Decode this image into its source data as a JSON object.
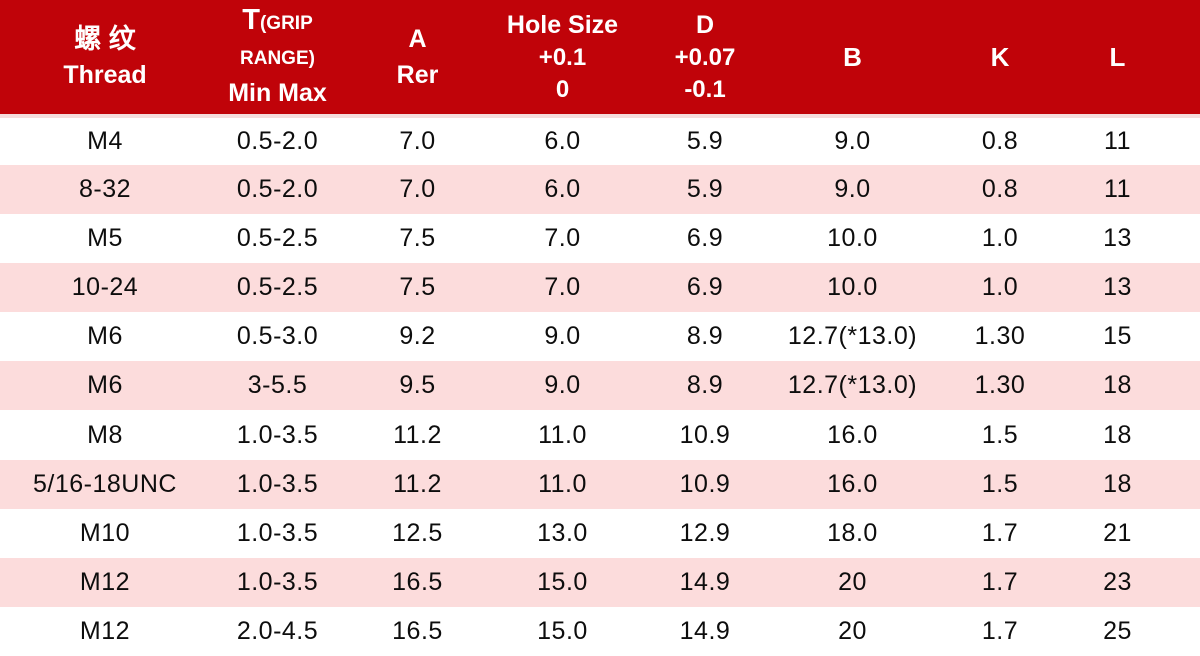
{
  "colors": {
    "header_bg": "#C00309",
    "header_text": "#FFFFFF",
    "row_alt_bg": "#FCDCDC",
    "row_bg": "#FFFFFF",
    "divider": "#F5DCDC",
    "body_text": "#0D0D0D"
  },
  "table": {
    "header": {
      "thread_cn": "螺 纹",
      "thread_en": "Thread",
      "grip_main": "T",
      "grip_sub": "(GRIP RANGE)",
      "grip_line2": "Min Max",
      "a_line1": "A",
      "a_line2": "Rer",
      "hole_line1": "Hole Size",
      "hole_line2": "+0.1",
      "hole_line3": "0",
      "d_line1": "D",
      "d_line2": "+0.07",
      "d_line3": "-0.1",
      "b": "B",
      "k": "K",
      "l": "L"
    },
    "rows": [
      [
        "M4",
        "0.5-2.0",
        "7.0",
        "6.0",
        "5.9",
        "9.0",
        "0.8",
        "11"
      ],
      [
        "8-32",
        "0.5-2.0",
        "7.0",
        "6.0",
        "5.9",
        "9.0",
        "0.8",
        "11"
      ],
      [
        "M5",
        "0.5-2.5",
        "7.5",
        "7.0",
        "6.9",
        "10.0",
        "1.0",
        "13"
      ],
      [
        "10-24",
        "0.5-2.5",
        "7.5",
        "7.0",
        "6.9",
        "10.0",
        "1.0",
        "13"
      ],
      [
        "M6",
        "0.5-3.0",
        "9.2",
        "9.0",
        "8.9",
        "12.7(*13.0)",
        "1.30",
        "15"
      ],
      [
        "M6",
        "3-5.5",
        "9.5",
        "9.0",
        "8.9",
        "12.7(*13.0)",
        "1.30",
        "18"
      ],
      [
        "M8",
        "1.0-3.5",
        "11.2",
        "11.0",
        "10.9",
        "16.0",
        "1.5",
        "18"
      ],
      [
        "5/16-18UNC",
        "1.0-3.5",
        "11.2",
        "11.0",
        "10.9",
        "16.0",
        "1.5",
        "18"
      ],
      [
        "M10",
        "1.0-3.5",
        "12.5",
        "13.0",
        "12.9",
        "18.0",
        "1.7",
        "21"
      ],
      [
        "M12",
        "1.0-3.5",
        "16.5",
        "15.0",
        "14.9",
        "20",
        "1.7",
        "23"
      ],
      [
        "M12",
        "2.0-4.5",
        "16.5",
        "15.0",
        "14.9",
        "20",
        "1.7",
        "25"
      ]
    ]
  }
}
